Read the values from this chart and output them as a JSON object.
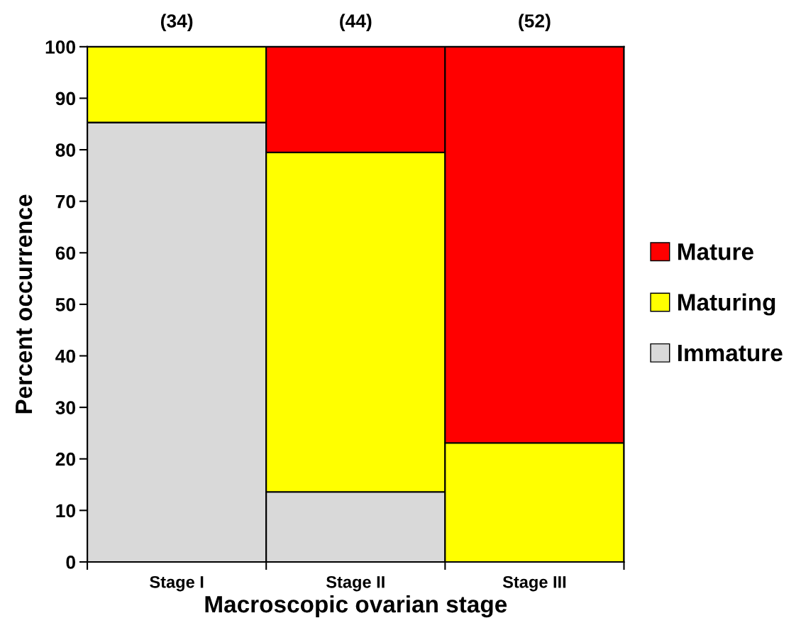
{
  "chart_data": {
    "type": "bar",
    "stacked": true,
    "xlabel": "Macroscopic ovarian stage",
    "ylabel": "Percent occurrence",
    "categories": [
      "Stage I",
      "Stage II",
      "Stage III"
    ],
    "series": [
      {
        "name": "Immature",
        "color": "#d9d9d9",
        "values": [
          85.3,
          13.6,
          0
        ]
      },
      {
        "name": "Maturing",
        "color": "#ffff00",
        "values": [
          14.7,
          65.9,
          23.1
        ]
      },
      {
        "name": "Mature",
        "color": "#ff0000",
        "values": [
          0,
          20.5,
          76.9
        ]
      }
    ],
    "annotations": [
      "(34)",
      "(44)",
      "(52)"
    ],
    "ylim": [
      0,
      100
    ],
    "yticks": [
      0,
      10,
      20,
      30,
      40,
      50,
      60,
      70,
      80,
      90,
      100
    ],
    "legend": "right",
    "grid": false
  }
}
